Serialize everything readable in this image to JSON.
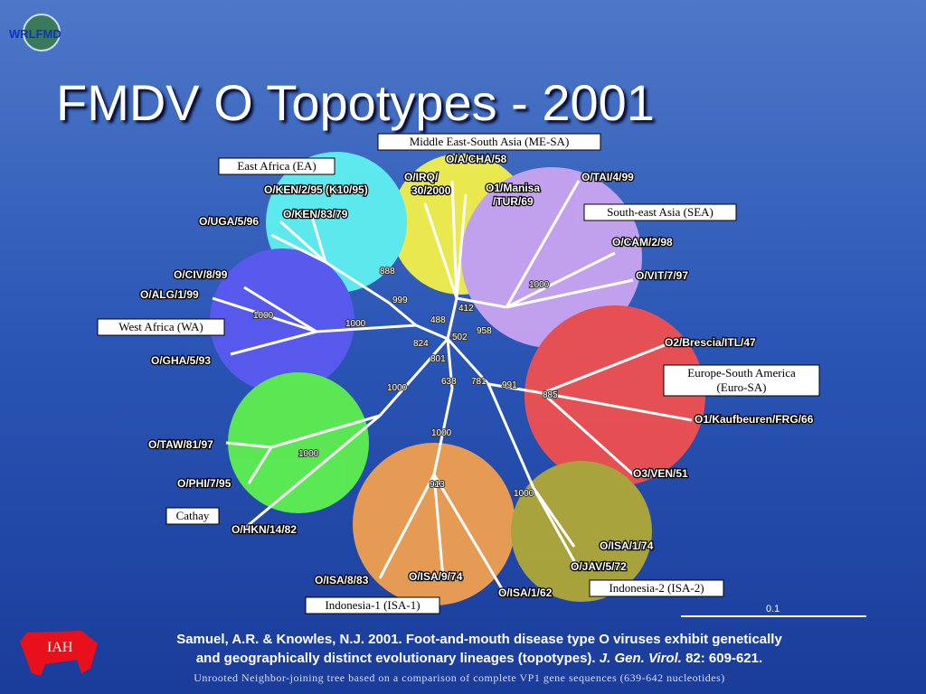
{
  "header": {
    "logo": "WRLFMD",
    "title": "FMDV O Topotypes - 2001"
  },
  "topotypes": [
    "Middle East-South Asia (ME-SA)",
    "East Africa (EA)",
    "South-east Asia (SEA)",
    "West Africa (WA)",
    [
      "Europe-South America",
      "(Euro-SA)"
    ],
    "Cathay",
    "Indonesia-1 (ISA-1)",
    "Indonesia-2 (ISA-2)"
  ],
  "isolates": [
    "O/A/CHA/58",
    [
      "O/IRQ/",
      "30/2000"
    ],
    [
      "O1/Manisa",
      "/TUR/69"
    ],
    "O/TAI/4/99",
    "O/KEN/2/95 (K10/95)",
    "O/KEN/83/79",
    "O/UGA/5/96",
    "O/CAM/2/98",
    "O/VIT/7/97",
    "O/CIV/8/99",
    "O/ALG/1/99",
    "O/GHA/5/93",
    "O2/Brescia/ITL/47",
    "O1/Kaufbeuren/FRG/66",
    "O/TAW/81/97",
    "O/PHI/7/95",
    "O3/VEN/51",
    "O/HKN/14/82",
    "O/ISA/1/74",
    "O/JAV/5/72",
    "O/ISA/8/83",
    "O/ISA/9/74",
    "O/ISA/1/62"
  ],
  "bootstrap": [
    "888",
    "999",
    "1000",
    "488",
    "412",
    "958",
    "502",
    "824",
    "801",
    "638",
    "781",
    "991",
    "1000",
    "1000",
    "1000",
    "1000",
    "1000",
    "913",
    "1000",
    "885"
  ],
  "scale": "0.1",
  "citation": {
    "line1": "Samuel, A.R. & Knowles, N.J. 2001. Foot-and-mouth disease type O viruses exhibit genetically",
    "line2": "and geographically distinct evolutionary lineages (topotypes).",
    "journal": "J. Gen. Virol.",
    "pages": "82: 609-621."
  },
  "footnote": "Unrooted Neighbor-joining tree based on a comparison of complete VP1 gene sequences (639-642 nucleotides)",
  "institute": "IAH"
}
